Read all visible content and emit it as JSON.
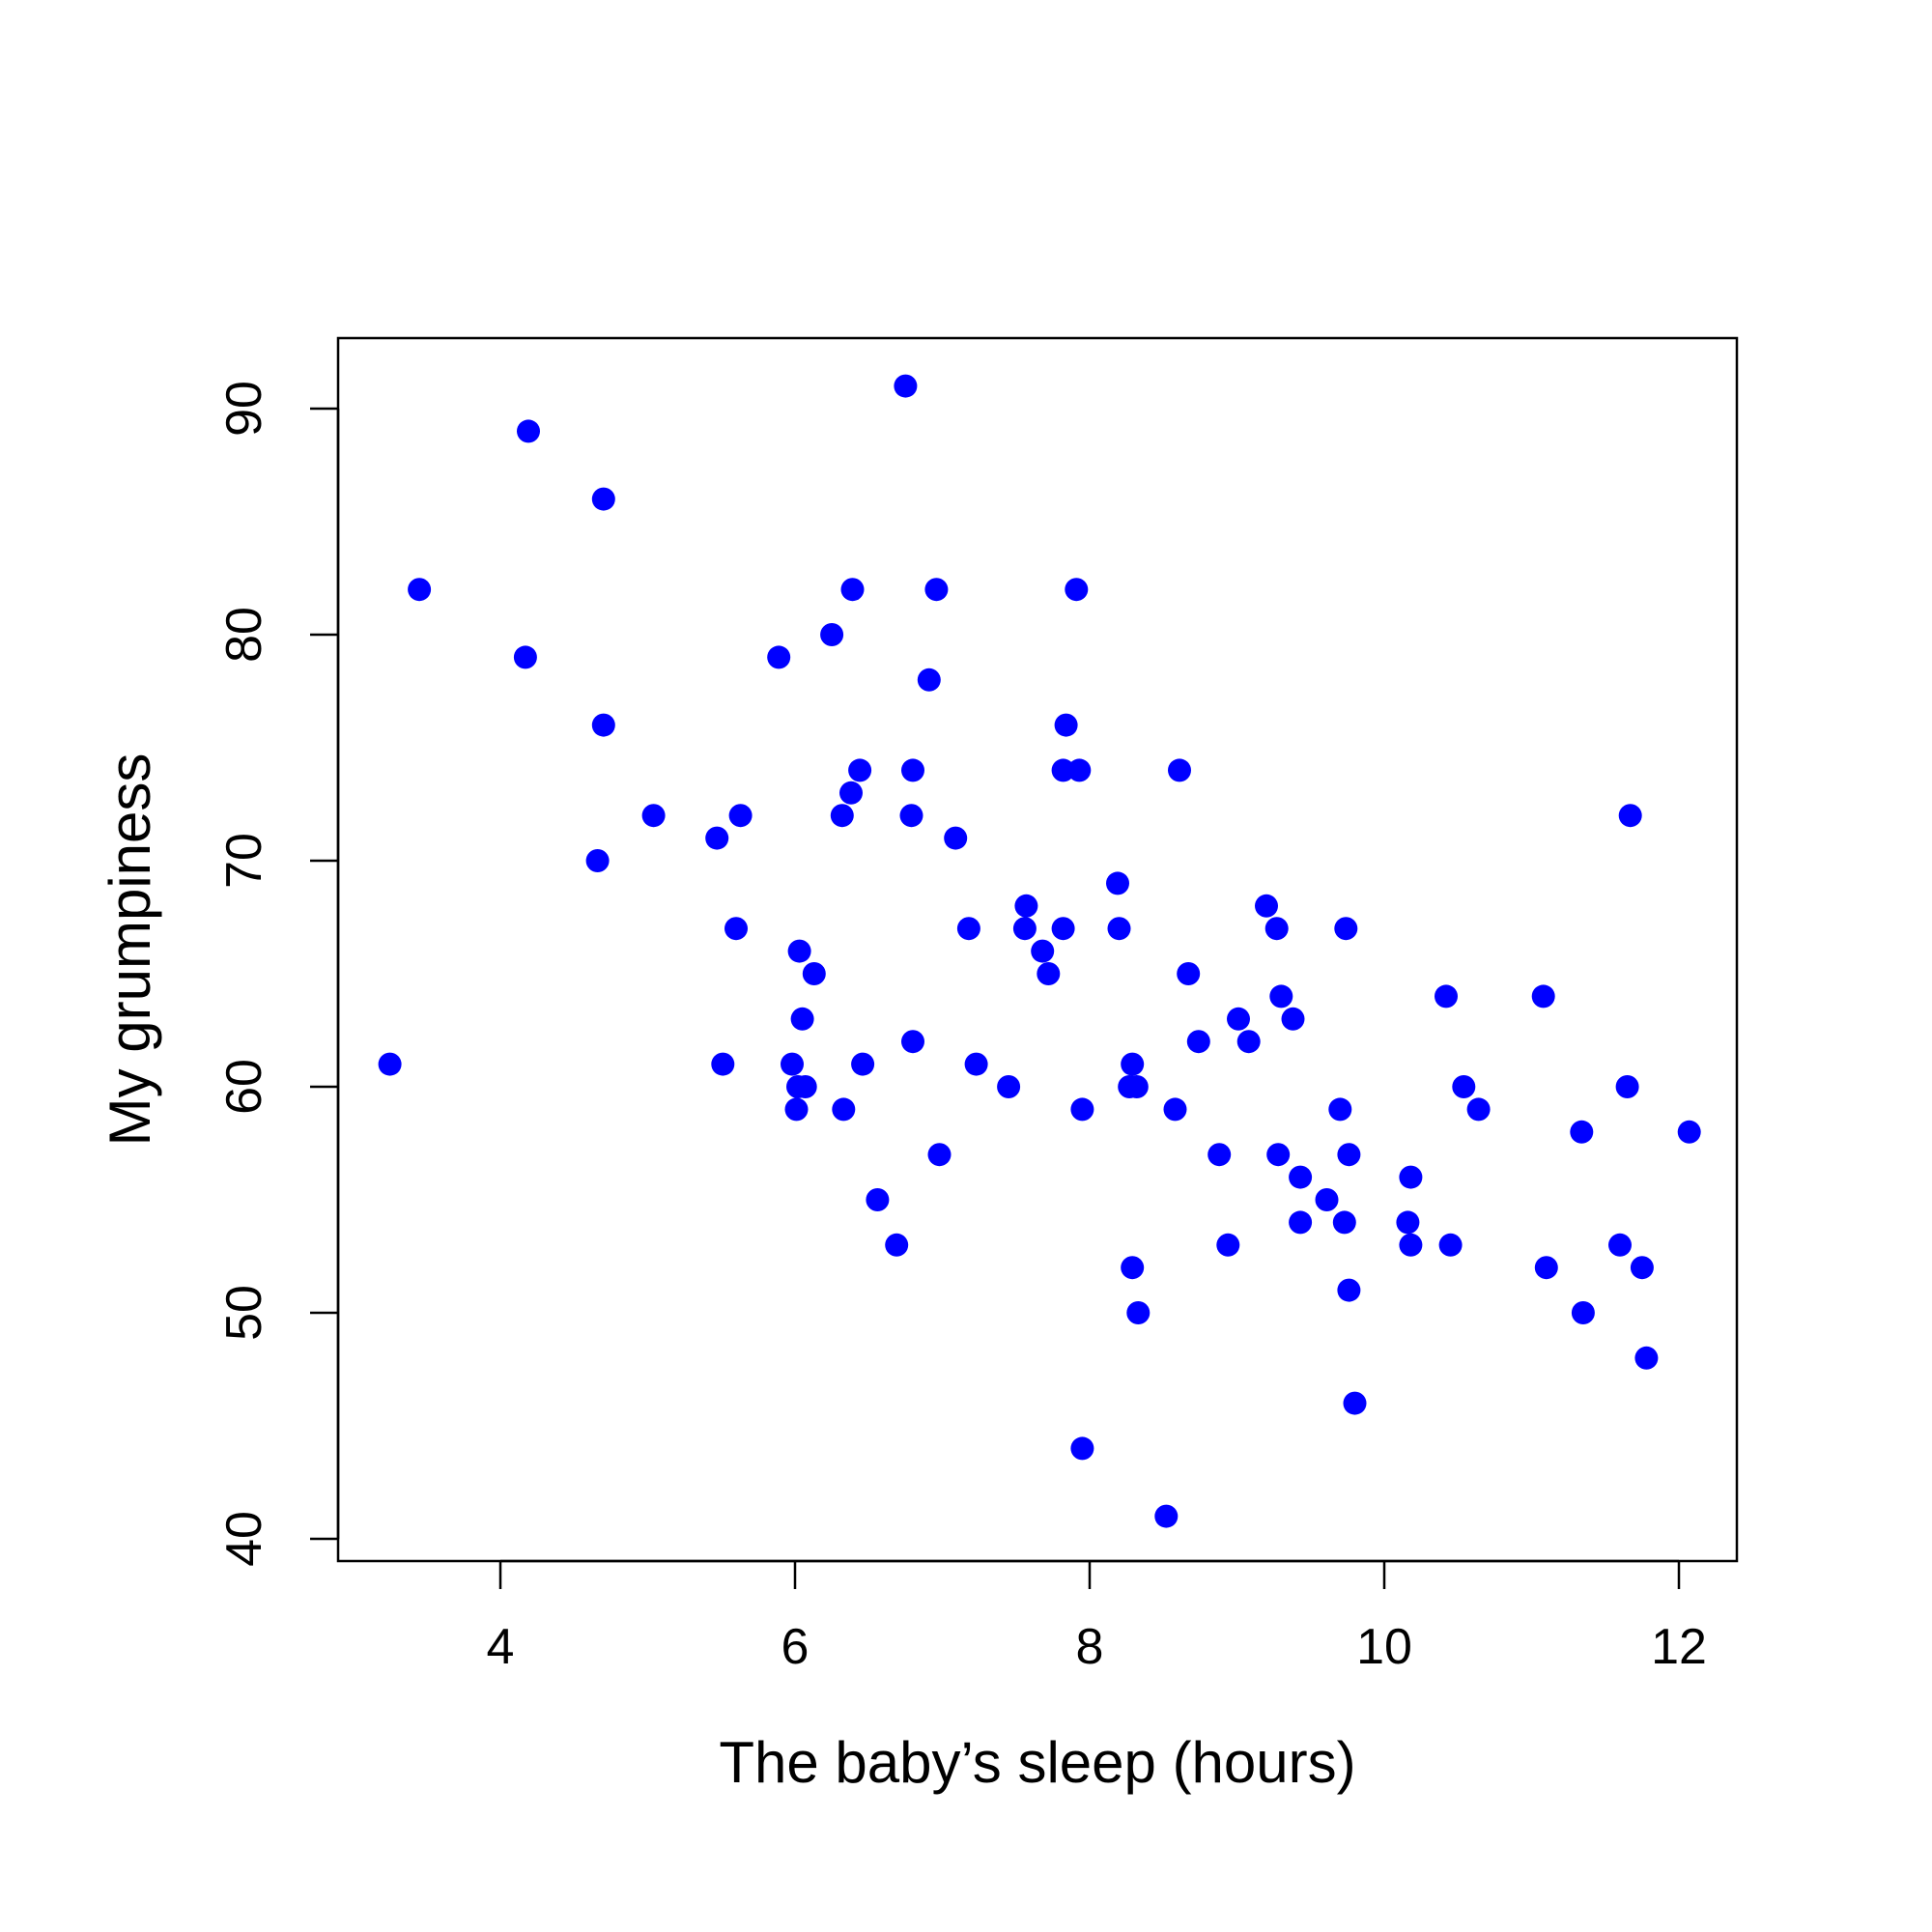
{
  "chart_data": {
    "type": "scatter",
    "title": "",
    "xlabel": "The baby’s sleep (hours)",
    "ylabel": "My grumpiness",
    "xlim": [
      2.9,
      12.4
    ],
    "ylim": [
      40,
      93
    ],
    "x_ticks": [
      4,
      6,
      8,
      10,
      12
    ],
    "y_ticks": [
      40,
      50,
      60,
      70,
      80,
      90
    ],
    "x_tick_labels": [
      "4",
      "6",
      "8",
      "10",
      "12"
    ],
    "y_tick_labels": [
      "40",
      "50",
      "60",
      "70",
      "80",
      "90"
    ],
    "grid": false,
    "legend": "none",
    "point_color": "#0000FF",
    "series": [
      {
        "points": [
          [
            3.25,
            61
          ],
          [
            3.45,
            82
          ],
          [
            4.17,
            79
          ],
          [
            4.19,
            89
          ],
          [
            4.66,
            70
          ],
          [
            4.7,
            86
          ],
          [
            4.7,
            76
          ],
          [
            5.04,
            72
          ],
          [
            5.47,
            71
          ],
          [
            5.51,
            61
          ],
          [
            5.6,
            67
          ],
          [
            5.63,
            72
          ],
          [
            5.89,
            79
          ],
          [
            5.98,
            61
          ],
          [
            6.01,
            59
          ],
          [
            6.02,
            60
          ],
          [
            6.03,
            66
          ],
          [
            6.05,
            63
          ],
          [
            6.07,
            60
          ],
          [
            6.13,
            65
          ],
          [
            6.25,
            80
          ],
          [
            6.32,
            72
          ],
          [
            6.33,
            59
          ],
          [
            6.38,
            73
          ],
          [
            6.39,
            82
          ],
          [
            6.44,
            74
          ],
          [
            6.46,
            61
          ],
          [
            6.56,
            55
          ],
          [
            6.69,
            53
          ],
          [
            6.75,
            91
          ],
          [
            6.79,
            72
          ],
          [
            6.8,
            74
          ],
          [
            6.8,
            62
          ],
          [
            6.91,
            78
          ],
          [
            6.96,
            82
          ],
          [
            6.98,
            57
          ],
          [
            7.09,
            71
          ],
          [
            7.18,
            67
          ],
          [
            7.23,
            61
          ],
          [
            7.45,
            60
          ],
          [
            7.56,
            67
          ],
          [
            7.57,
            68
          ],
          [
            7.68,
            66
          ],
          [
            7.72,
            65
          ],
          [
            7.82,
            74
          ],
          [
            7.82,
            67
          ],
          [
            7.84,
            76
          ],
          [
            7.91,
            82
          ],
          [
            7.93,
            74
          ],
          [
            7.95,
            59
          ],
          [
            7.95,
            44
          ],
          [
            8.19,
            69
          ],
          [
            8.2,
            67
          ],
          [
            8.27,
            60
          ],
          [
            8.29,
            61
          ],
          [
            8.29,
            52
          ],
          [
            8.32,
            60
          ],
          [
            8.33,
            50
          ],
          [
            8.52,
            41
          ],
          [
            8.58,
            59
          ],
          [
            8.61,
            74
          ],
          [
            8.67,
            65
          ],
          [
            8.74,
            62
          ],
          [
            8.88,
            57
          ],
          [
            8.94,
            53
          ],
          [
            9.01,
            63
          ],
          [
            9.08,
            62
          ],
          [
            9.2,
            68
          ],
          [
            9.27,
            67
          ],
          [
            9.28,
            57
          ],
          [
            9.3,
            64
          ],
          [
            9.38,
            63
          ],
          [
            9.43,
            56
          ],
          [
            9.43,
            54
          ],
          [
            9.61,
            55
          ],
          [
            9.7,
            59
          ],
          [
            9.73,
            54
          ],
          [
            9.74,
            67
          ],
          [
            9.76,
            57
          ],
          [
            9.76,
            51
          ],
          [
            9.8,
            46
          ],
          [
            10.16,
            54
          ],
          [
            10.18,
            56
          ],
          [
            10.18,
            53
          ],
          [
            10.42,
            64
          ],
          [
            10.45,
            53
          ],
          [
            10.54,
            60
          ],
          [
            10.64,
            59
          ],
          [
            11.08,
            64
          ],
          [
            11.1,
            52
          ],
          [
            11.34,
            58
          ],
          [
            11.35,
            50
          ],
          [
            11.6,
            53
          ],
          [
            11.65,
            60
          ],
          [
            11.67,
            72
          ],
          [
            11.75,
            52
          ],
          [
            11.78,
            48
          ],
          [
            12.07,
            58
          ]
        ]
      }
    ]
  }
}
